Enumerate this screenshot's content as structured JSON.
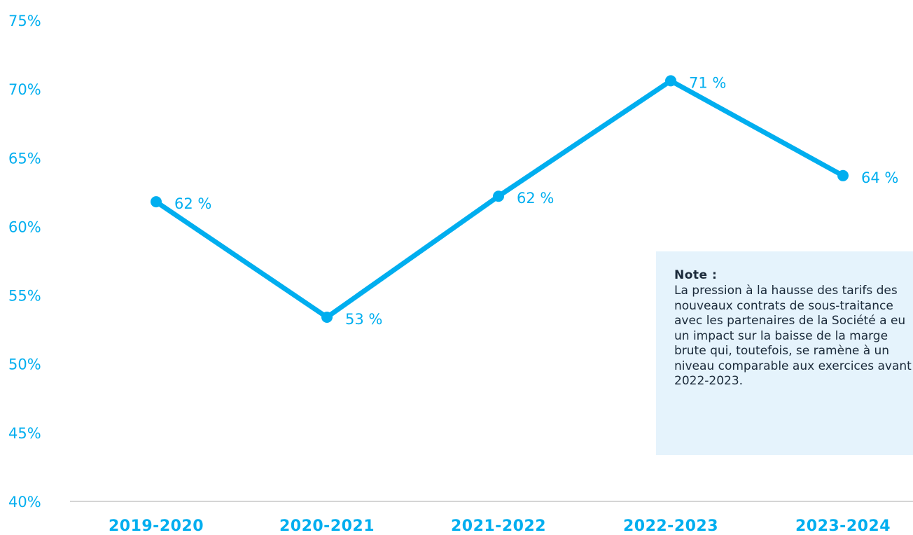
{
  "chart_data": {
    "type": "line",
    "categories": [
      "2019-2020",
      "2020-2021",
      "2021-2022",
      "2022-2023",
      "2023-2024"
    ],
    "values": [
      61.8,
      53.4,
      62.2,
      70.6,
      63.7
    ],
    "data_labels": [
      "62 %",
      "53 %",
      "62 %",
      "71 %",
      "64 %"
    ],
    "y_ticks": [
      "40%",
      "45%",
      "50%",
      "55%",
      "60%",
      "65%",
      "70%",
      "75%"
    ],
    "ylim": [
      40,
      75
    ],
    "grid": false,
    "color": "#00aeef"
  },
  "note": {
    "title": "Note :",
    "body": "La pression à la hausse des tarifs des nouveaux contrats de sous-traitance avec les partenaires de la Société a eu un impact sur la baisse de la marge brute qui, toutefois, se ramène à un niveau comparable aux exercices avant 2022-2023."
  }
}
